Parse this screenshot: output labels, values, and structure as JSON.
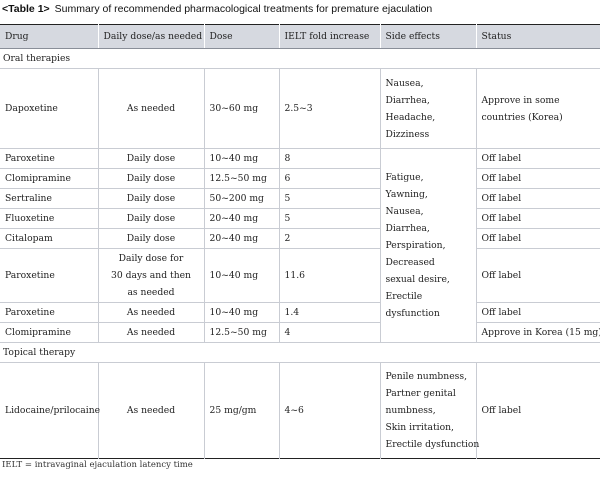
{
  "caption": {
    "label": "<Table 1>",
    "title": "Summary of recommended pharmacological treatments for premature ejaculation"
  },
  "headers": [
    "Drug",
    "Daily dose/as needed",
    "Dose",
    "IELT fold increase",
    "Side effects",
    "Status"
  ],
  "groups": {
    "oral": "Oral therapies",
    "topical": "Topical therapy"
  },
  "rows": {
    "dapoxetine": {
      "drug": "Dapoxetine",
      "regimen": "As needed",
      "dose": "30~60 mg",
      "ielt": "2.5~3",
      "side_effects": [
        "Nausea,",
        "Diarrhea,",
        "Headache,",
        "Dizziness"
      ],
      "status": [
        "Approve in some",
        "countries (Korea)"
      ]
    },
    "paroxetine_daily": {
      "drug": "Paroxetine",
      "regimen": "Daily dose",
      "dose": "10~40 mg",
      "ielt": "8",
      "status": "Off label"
    },
    "clomipramine_daily": {
      "drug": "Clomipramine",
      "regimen": "Daily dose",
      "dose": "12.5~50 mg",
      "ielt": "6",
      "status": "Off label"
    },
    "sertraline": {
      "drug": "Sertraline",
      "regimen": "Daily dose",
      "dose": "50~200 mg",
      "ielt": "5",
      "status": "Off label"
    },
    "fluoxetine": {
      "drug": "Fluoxetine",
      "regimen": "Daily dose",
      "dose": "20~40 mg",
      "ielt": "5",
      "status": "Off label"
    },
    "citalopam": {
      "drug": "Citalopam",
      "regimen": "Daily dose",
      "dose": "20~40 mg",
      "ielt": "2",
      "status": "Off label"
    },
    "paroxetine_30days": {
      "drug": "Paroxetine",
      "regimen": [
        "Daily dose for",
        "30 days and then",
        "as needed"
      ],
      "dose": "10~40 mg",
      "ielt": "11.6",
      "status": "Off label"
    },
    "paroxetine_asneeded": {
      "drug": "Paroxetine",
      "regimen": "As needed",
      "dose": "10~40 mg",
      "ielt": "1.4",
      "status": "Off label"
    },
    "clomipramine_asneeded": {
      "drug": "Clomipramine",
      "regimen": "As needed",
      "dose": "12.5~50 mg",
      "ielt": "4",
      "status": "Approve in Korea (15 mg)"
    },
    "lidocaine": {
      "drug": "Lidocaine/prilocaine",
      "regimen": "As needed",
      "dose": "25 mg/gm",
      "ielt": "4~6",
      "side_effects": [
        "Penile numbness,",
        "Partner genital",
        "numbness,",
        "Skin irritation,",
        "Erectile dysfunction"
      ],
      "status": "Off label"
    }
  },
  "shared_side_effects": [
    "Fatigue,",
    "Yawning,",
    "Nausea,",
    "Diarrhea,",
    "Perspiration,",
    "Decreased",
    "sexual desire,",
    "Erectile",
    "dysfunction"
  ],
  "footnote": "IELT = intravaginal ejaculation latency time"
}
